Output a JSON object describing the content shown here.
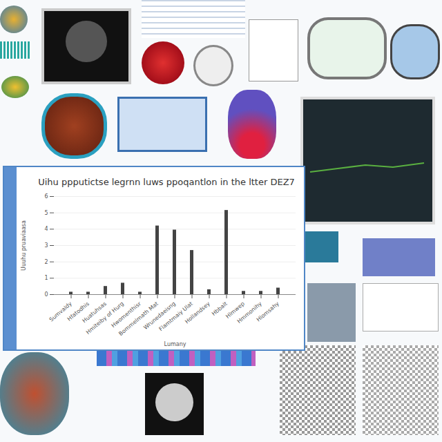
{
  "chart_data": {
    "type": "bar",
    "title": "Uihu ppputictse legrnn luws ppoqantlon in the ltter DEZ7",
    "x_label": "Lumany",
    "y_label": "Uuuhu pruaviaasa",
    "categories": [
      "Sumvaldy",
      "Hfatodhis",
      "Huatuhsas",
      "Hmiteiby of Hurg",
      "Hwomenthisr",
      "Bommelmath Mat",
      "Wrunedaeisng",
      "Flamtmaiy Ulat",
      "Hollandsey",
      "Hbbalt",
      "Hlmwep",
      "Hmmonihy",
      "Hlomsahy"
    ],
    "values": [
      0.15,
      0.15,
      0.5,
      0.7,
      0.15,
      4.2,
      3.95,
      2.7,
      0.3,
      5.15,
      0.2,
      0.2,
      0.4
    ],
    "color": "#444444",
    "ylim": [
      0,
      6
    ],
    "yticks": [
      0,
      1,
      2,
      3,
      4,
      5,
      6
    ],
    "grid": true
  }
}
